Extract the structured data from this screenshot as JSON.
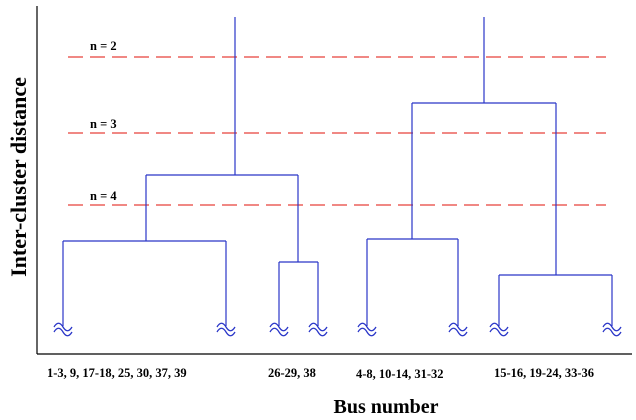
{
  "axes": {
    "y_label": "Inter-cluster distance",
    "x_label": "Bus number"
  },
  "cut_lines": [
    {
      "label": "n = 2",
      "color": "#e8413a"
    },
    {
      "label": "n = 3",
      "color": "#e8413a"
    },
    {
      "label": "n = 4",
      "color": "#e8413a"
    }
  ],
  "leaf_groups": [
    {
      "label": "1-3, 9, 17-18, 25, 30, 37,  39"
    },
    {
      "label": "26-29, 38"
    },
    {
      "label": "4-8, 10-14, 31-32"
    },
    {
      "label": "15-16, 19-24, 33-36"
    }
  ],
  "colors": {
    "tree": "#2a36c8",
    "axes": "#000000",
    "cut": "#e8413a"
  }
}
